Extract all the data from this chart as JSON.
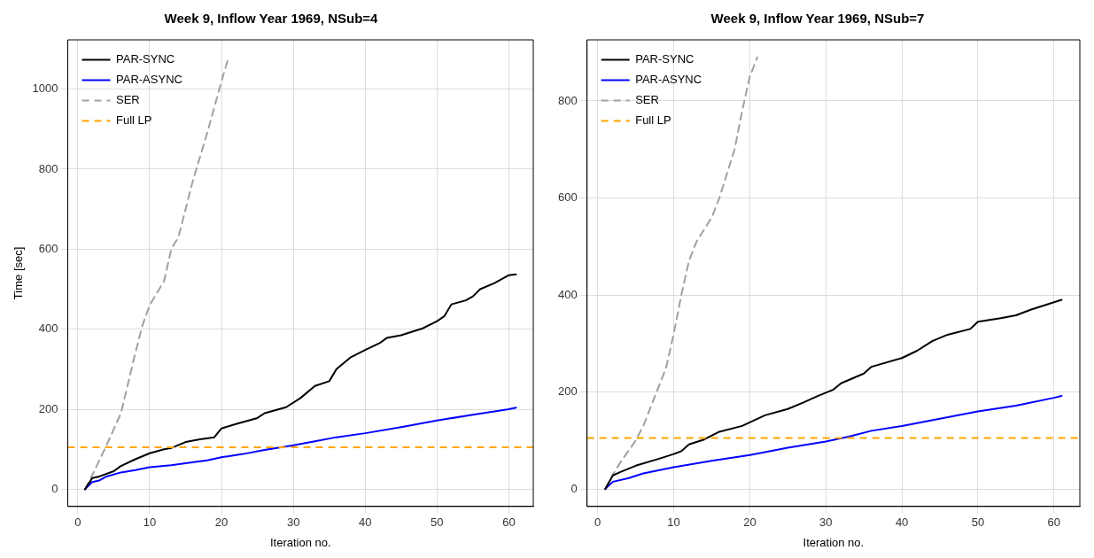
{
  "chart_data": [
    {
      "type": "line",
      "title": "Week 9, Inflow Year 1969, NSub=4",
      "xlabel": "Iteration no.",
      "ylabel": "Time [sec]",
      "xlim": [
        -1.4,
        63.4
      ],
      "ylim": [
        -43,
        1123
      ],
      "xticks": [
        0,
        10,
        20,
        30,
        40,
        50,
        60
      ],
      "yticks": [
        0,
        200,
        400,
        600,
        800,
        1000
      ],
      "grid": true,
      "legend": "top left",
      "marker": "none",
      "series": [
        {
          "name": "PAR-SYNC",
          "color": "#000000",
          "line_style": "solid",
          "x": [
            1,
            2,
            3,
            5,
            6,
            8,
            10,
            12,
            13,
            15,
            17,
            19,
            20,
            22,
            25,
            26,
            29,
            31,
            33,
            35,
            36,
            38,
            40,
            42,
            43,
            45,
            48,
            50,
            51,
            52,
            54,
            55,
            56,
            58,
            60,
            61
          ],
          "values": [
            0,
            28,
            32,
            45,
            58,
            75,
            90,
            100,
            103,
            118,
            125,
            130,
            152,
            163,
            178,
            190,
            205,
            228,
            258,
            270,
            300,
            330,
            348,
            365,
            378,
            385,
            402,
            420,
            432,
            462,
            472,
            482,
            500,
            515,
            535,
            537
          ]
        },
        {
          "name": "PAR-ASYNC",
          "color": "#0000ff",
          "line_style": "solid",
          "x": [
            1,
            2,
            3,
            4,
            6,
            8,
            10,
            13,
            15,
            18,
            20,
            23,
            26,
            30,
            33,
            36,
            40,
            45,
            50,
            55,
            60,
            61
          ],
          "values": [
            0,
            18,
            22,
            32,
            42,
            48,
            55,
            60,
            65,
            72,
            80,
            88,
            98,
            110,
            120,
            130,
            140,
            155,
            172,
            186,
            200,
            204
          ]
        },
        {
          "name": "SER",
          "color": "#a0a0a0",
          "line_style": "dashed",
          "x": [
            1,
            2,
            4,
            6,
            7,
            8,
            9,
            10,
            12,
            13,
            14,
            16,
            18,
            20,
            21
          ],
          "values": [
            0,
            35,
            110,
            190,
            265,
            340,
            410,
            460,
            520,
            600,
            630,
            770,
            890,
            1020,
            1080
          ]
        }
      ],
      "ref_lines": [
        {
          "axis": "y",
          "value": 105,
          "label": "Full LP",
          "color": "#ffa500",
          "line_style": "dashed"
        }
      ]
    },
    {
      "type": "line",
      "title": "Week 9, Inflow Year 1969, NSub=7",
      "xlabel": "Iteration no.",
      "xlim": [
        -1.4,
        63.4
      ],
      "ylim": [
        -36,
        926
      ],
      "xticks": [
        0,
        10,
        20,
        30,
        40,
        50,
        60
      ],
      "yticks": [
        0,
        200,
        400,
        600,
        800
      ],
      "grid": true,
      "legend": "top left",
      "marker": "none",
      "series": [
        {
          "name": "PAR-SYNC",
          "color": "#000000",
          "line_style": "solid",
          "x": [
            1,
            2,
            3,
            5,
            8,
            10,
            11,
            12,
            14,
            16,
            19,
            22,
            25,
            27,
            29,
            31,
            32,
            35,
            36,
            40,
            42,
            44,
            46,
            49,
            50,
            53,
            55,
            57,
            60,
            61
          ],
          "values": [
            0,
            28,
            35,
            48,
            62,
            72,
            78,
            92,
            102,
            118,
            130,
            152,
            165,
            178,
            192,
            205,
            218,
            238,
            252,
            270,
            285,
            305,
            318,
            330,
            345,
            352,
            358,
            370,
            385,
            390
          ]
        },
        {
          "name": "PAR-ASYNC",
          "color": "#0000ff",
          "line_style": "solid",
          "x": [
            1,
            2,
            4,
            6,
            10,
            15,
            20,
            25,
            30,
            33,
            36,
            40,
            45,
            50,
            55,
            60,
            61
          ],
          "values": [
            0,
            15,
            22,
            32,
            45,
            58,
            70,
            85,
            98,
            108,
            120,
            130,
            145,
            160,
            172,
            188,
            192
          ]
        },
        {
          "name": "SER",
          "color": "#a0a0a0",
          "line_style": "dashed",
          "x": [
            1,
            2,
            3,
            5,
            6,
            8,
            9,
            10,
            11,
            12,
            13,
            15,
            16,
            18,
            19,
            20,
            21
          ],
          "values": [
            0,
            30,
            55,
            100,
            130,
            210,
            250,
            320,
            400,
            470,
            510,
            560,
            600,
            700,
            780,
            850,
            890
          ]
        }
      ],
      "ref_lines": [
        {
          "axis": "y",
          "value": 105,
          "label": "Full LP",
          "color": "#ffa500",
          "line_style": "dashed"
        }
      ]
    }
  ]
}
